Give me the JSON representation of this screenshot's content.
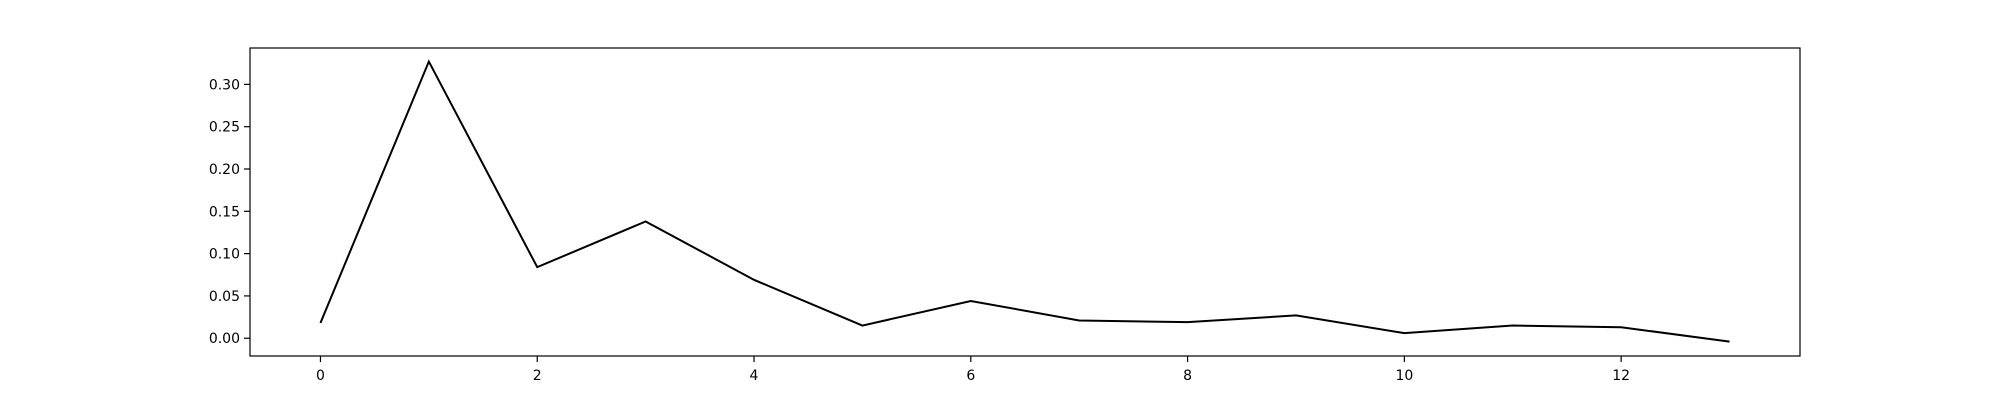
{
  "chart_data": {
    "type": "line",
    "title": "",
    "xlabel": "",
    "ylabel": "",
    "xlim": [
      -0.65,
      13.65
    ],
    "ylim": [
      -0.021,
      0.343
    ],
    "x_ticks": [
      0,
      2,
      4,
      6,
      8,
      10,
      12
    ],
    "x_tick_labels": [
      "0",
      "2",
      "4",
      "6",
      "8",
      "10",
      "12"
    ],
    "y_ticks": [
      0.0,
      0.05,
      0.1,
      0.15,
      0.2,
      0.25,
      0.3
    ],
    "y_tick_labels": [
      "0.00",
      "0.05",
      "0.10",
      "0.15",
      "0.20",
      "0.25",
      "0.30"
    ],
    "grid": false,
    "series": [
      {
        "color": "#000000",
        "x": [
          0,
          1,
          2,
          3,
          4,
          5,
          6,
          7,
          8,
          9,
          10,
          11,
          12,
          13
        ],
        "values": [
          0.018,
          0.327,
          0.084,
          0.138,
          0.069,
          0.015,
          0.044,
          0.021,
          0.019,
          0.027,
          0.006,
          0.015,
          0.013,
          -0.004
        ]
      }
    ]
  }
}
